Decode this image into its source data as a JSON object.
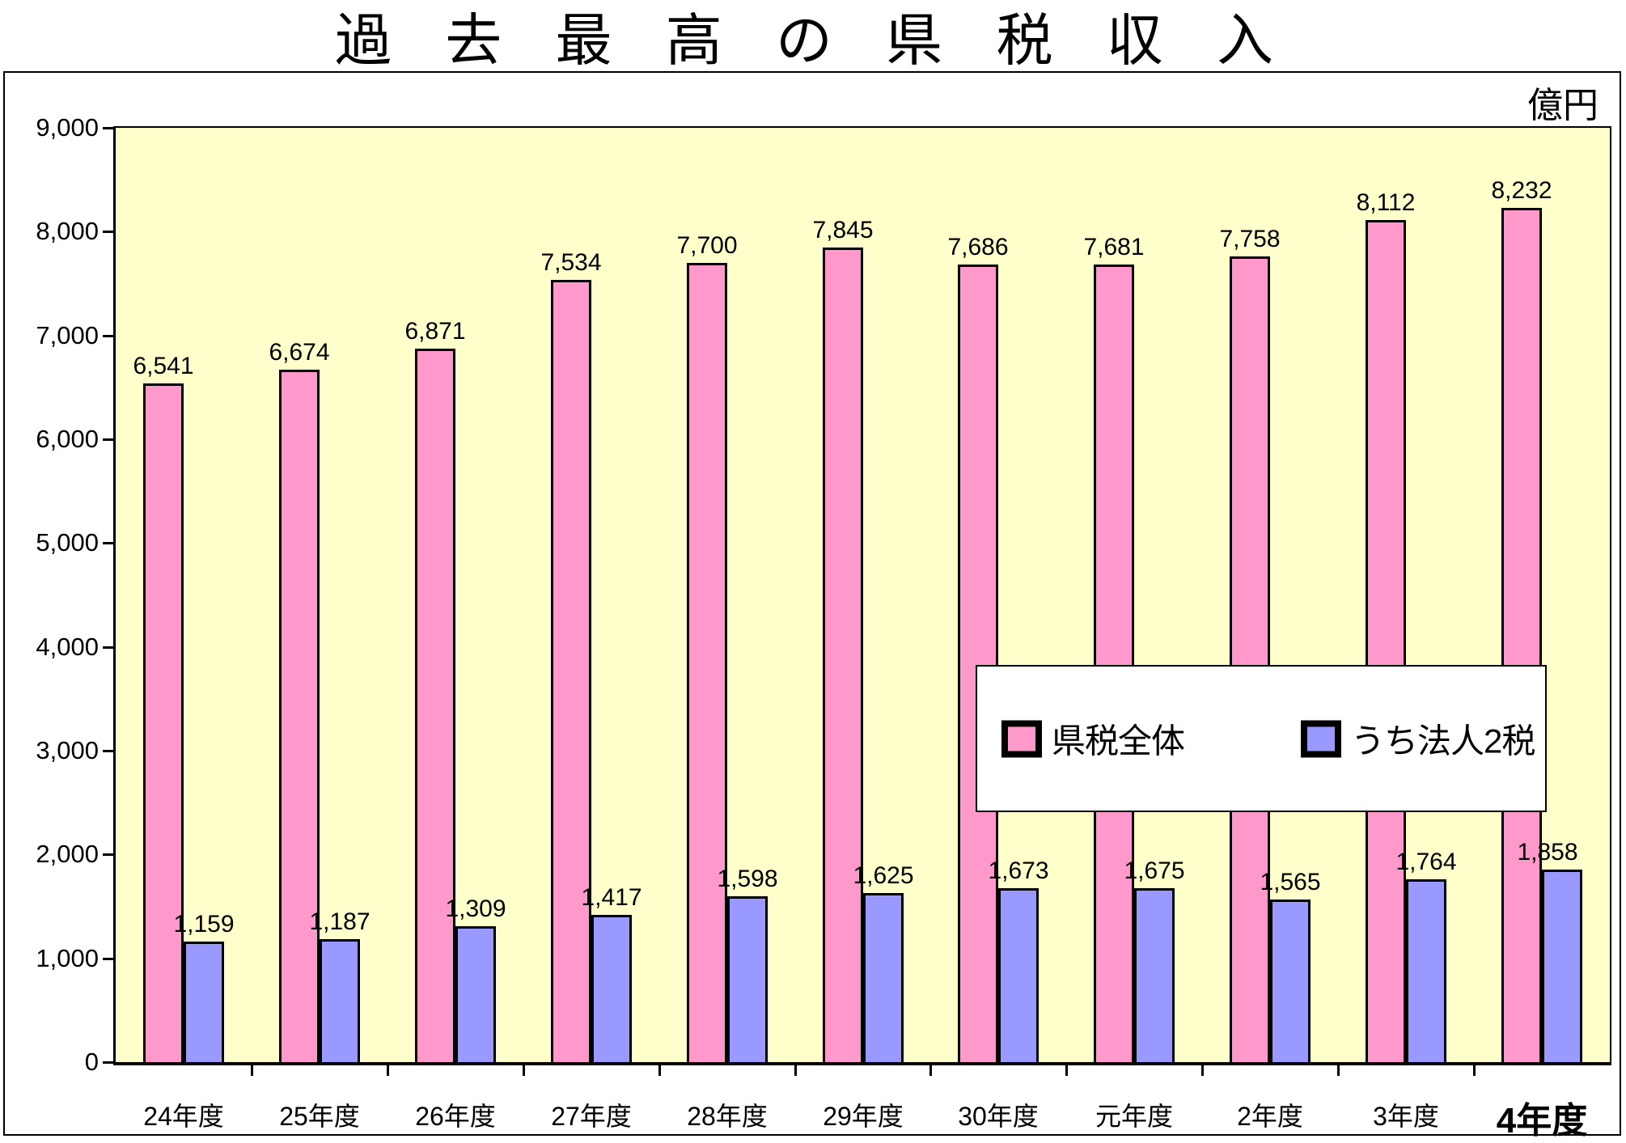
{
  "chart_data": {
    "type": "bar",
    "title": "過 去 最 高 の 県 税 収 入",
    "unit_label": "億円",
    "categories": [
      "24年度",
      "25年度",
      "26年度",
      "27年度",
      "28年度",
      "29年度",
      "30年度",
      "元年度",
      "2年度",
      "3年度",
      "4年度"
    ],
    "series": [
      {
        "name": "県税全体",
        "color": "#FF99CC",
        "values": [
          6541,
          6674,
          6871,
          7534,
          7700,
          7845,
          7686,
          7681,
          7758,
          8112,
          8232
        ],
        "labels": [
          "6,541",
          "6,674",
          "6,871",
          "7,534",
          "7,700",
          "7,845",
          "7,686",
          "7,681",
          "7,758",
          "8,112",
          "8,232"
        ]
      },
      {
        "name": "うち法人2税",
        "color": "#9999FF",
        "values": [
          1159,
          1187,
          1309,
          1417,
          1598,
          1625,
          1673,
          1675,
          1565,
          1764,
          1858
        ],
        "labels": [
          "1,159",
          "1,187",
          "1,309",
          "1,417",
          "1,598",
          "1,625",
          "1,673",
          "1,675",
          "1,565",
          "1,764",
          "1,858"
        ]
      }
    ],
    "ylim": [
      0,
      9000
    ],
    "y_tick_step": 1000,
    "y_tick_labels": [
      "0",
      "1,000",
      "2,000",
      "3,000",
      "4,000",
      "5,000",
      "6,000",
      "7,000",
      "8,000",
      "9,000"
    ],
    "xlabel": "",
    "ylabel": "",
    "grid": false,
    "plot_bg_color": "#FFFFCC",
    "legend_position": "overlay-center-right",
    "highlight_last_category": true
  }
}
